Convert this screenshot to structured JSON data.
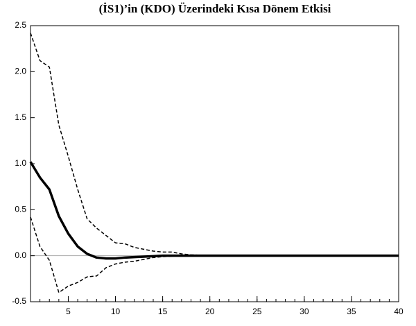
{
  "chart_data": {
    "type": "line",
    "title": "(İS1)’in (KDO) Üzerindeki Kısa Dönem Etkisi",
    "x": [
      1,
      2,
      3,
      4,
      5,
      6,
      7,
      8,
      9,
      10,
      11,
      12,
      13,
      14,
      15,
      16,
      17,
      18,
      19,
      20,
      21,
      22,
      23,
      24,
      25,
      26,
      27,
      28,
      29,
      30,
      31,
      32,
      33,
      34,
      35,
      36,
      37,
      38,
      39,
      40
    ],
    "series": [
      {
        "color": "#000000",
        "dashed": false,
        "width": 3.5,
        "values": [
          1.02,
          0.85,
          0.72,
          0.43,
          0.24,
          0.1,
          0.02,
          -0.02,
          -0.03,
          -0.03,
          -0.02,
          -0.015,
          -0.01,
          -0.005,
          0,
          0,
          0,
          0,
          0,
          0,
          0,
          0,
          0,
          0,
          0,
          0,
          0,
          0,
          0,
          0,
          0,
          0,
          0,
          0,
          0,
          0,
          0,
          0,
          0,
          0
        ]
      },
      {
        "color": "#000000",
        "dashed": true,
        "width": 1.5,
        "values": [
          2.42,
          2.12,
          2.05,
          1.42,
          1.08,
          0.72,
          0.4,
          0.3,
          0.22,
          0.14,
          0.13,
          0.09,
          0.07,
          0.05,
          0.04,
          0.04,
          0.02,
          0.01,
          0.005,
          0,
          0,
          0,
          0,
          0,
          0,
          0,
          0,
          0,
          0,
          0,
          0,
          0,
          0,
          0,
          0,
          0,
          0,
          0,
          0,
          0
        ]
      },
      {
        "color": "#000000",
        "dashed": true,
        "width": 1.5,
        "values": [
          0.42,
          0.1,
          -0.05,
          -0.4,
          -0.33,
          -0.29,
          -0.23,
          -0.22,
          -0.13,
          -0.09,
          -0.07,
          -0.06,
          -0.04,
          -0.02,
          -0.01,
          -0.005,
          0,
          0,
          0,
          0,
          0,
          0,
          0,
          0,
          0,
          0,
          0,
          0,
          0,
          0,
          0,
          0,
          0,
          0,
          0,
          0,
          0,
          0,
          0,
          0
        ]
      }
    ],
    "xlim": [
      1,
      40
    ],
    "xticks": [
      5,
      10,
      15,
      20,
      25,
      30,
      35,
      40
    ],
    "ylim": [
      -0.5,
      2.5
    ],
    "yticks": [
      -0.5,
      {
        "value": 0,
        "label": "0.0"
      },
      0.5,
      {
        "value": 1,
        "label": "1.0"
      },
      1.5,
      {
        "value": 2,
        "label": "2.0"
      },
      2.5
    ],
    "zero_line": true,
    "zero_line_color": "#aaaaaa"
  }
}
